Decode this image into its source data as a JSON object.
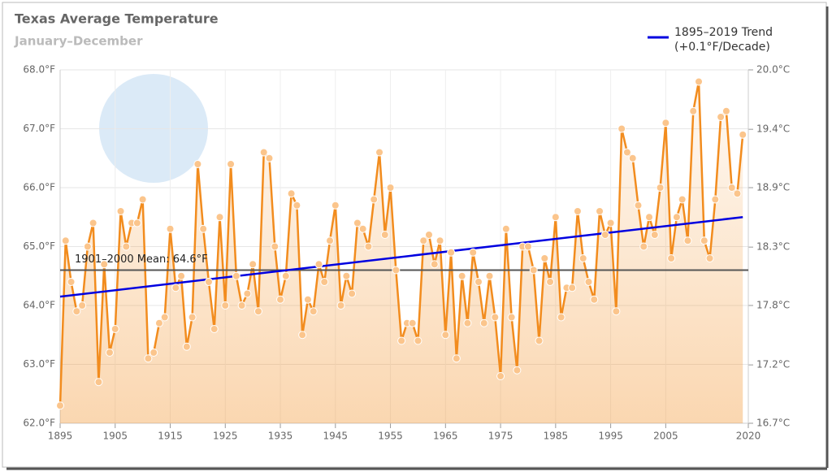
{
  "chart_data": {
    "type": "line",
    "title": "Texas Average Temperature",
    "subtitle": "January–December",
    "x": [
      1895,
      1896,
      1897,
      1898,
      1899,
      1900,
      1901,
      1902,
      1903,
      1904,
      1905,
      1906,
      1907,
      1908,
      1909,
      1910,
      1911,
      1912,
      1913,
      1914,
      1915,
      1916,
      1917,
      1918,
      1919,
      1920,
      1921,
      1922,
      1923,
      1924,
      1925,
      1926,
      1927,
      1928,
      1929,
      1930,
      1931,
      1932,
      1933,
      1934,
      1935,
      1936,
      1937,
      1938,
      1939,
      1940,
      1941,
      1942,
      1943,
      1944,
      1945,
      1946,
      1947,
      1948,
      1949,
      1950,
      1951,
      1952,
      1953,
      1954,
      1955,
      1956,
      1957,
      1958,
      1959,
      1960,
      1961,
      1962,
      1963,
      1964,
      1965,
      1966,
      1967,
      1968,
      1969,
      1970,
      1971,
      1972,
      1973,
      1974,
      1975,
      1976,
      1977,
      1978,
      1979,
      1980,
      1981,
      1982,
      1983,
      1984,
      1985,
      1986,
      1987,
      1988,
      1989,
      1990,
      1991,
      1992,
      1993,
      1994,
      1995,
      1996,
      1997,
      1998,
      1999,
      2000,
      2001,
      2002,
      2003,
      2004,
      2005,
      2006,
      2007,
      2008,
      2009,
      2010,
      2011,
      2012,
      2013,
      2014,
      2015,
      2016,
      2017,
      2018,
      2019
    ],
    "series": [
      {
        "name": null,
        "color": "#f28c1e",
        "values": [
          62.3,
          65.1,
          64.4,
          63.9,
          64.0,
          65.0,
          65.4,
          62.7,
          64.7,
          63.2,
          63.6,
          65.6,
          65.0,
          65.4,
          65.4,
          65.8,
          63.1,
          63.2,
          63.7,
          63.8,
          65.3,
          64.3,
          64.5,
          63.3,
          63.8,
          66.4,
          65.3,
          64.4,
          63.6,
          65.5,
          64.0,
          66.4,
          64.5,
          64.0,
          64.2,
          64.7,
          63.9,
          66.6,
          66.5,
          65.0,
          64.1,
          64.5,
          65.9,
          65.7,
          63.5,
          64.1,
          63.9,
          64.7,
          64.4,
          65.1,
          65.7,
          64.0,
          64.5,
          64.2,
          65.4,
          65.3,
          65.0,
          65.8,
          66.6,
          65.2,
          66.0,
          64.6,
          63.4,
          63.7,
          63.7,
          63.4,
          65.1,
          65.2,
          64.7,
          65.1,
          63.5,
          64.9,
          63.1,
          64.5,
          63.7,
          64.9,
          64.4,
          63.7,
          64.5,
          63.8,
          62.8,
          65.3,
          63.8,
          62.9,
          65.0,
          65.0,
          64.6,
          63.4,
          64.8,
          64.4,
          65.5,
          63.8,
          64.3,
          64.3,
          65.6,
          64.8,
          64.4,
          64.1,
          65.6,
          65.2,
          65.4,
          63.9,
          67.0,
          66.6,
          66.5,
          65.7,
          65.0,
          65.5,
          65.2,
          66.0,
          67.1,
          64.8,
          65.5,
          65.8,
          65.1,
          67.3,
          67.8,
          65.1,
          64.8,
          65.8,
          67.2,
          67.3,
          66.0,
          65.9,
          66.9
        ]
      }
    ],
    "trend": {
      "name": "1895–2019 Trend",
      "label": "(+0.1°F/Decade)",
      "color": "#0000e0",
      "x": [
        1895,
        2019
      ],
      "values": [
        64.15,
        65.5
      ]
    },
    "mean": {
      "label": "1901–2000 Mean: 64.6°F",
      "value": 64.6,
      "color": "#555555"
    },
    "xlim": [
      1895,
      2020
    ],
    "xticks": [
      1895,
      1905,
      1915,
      1925,
      1935,
      1945,
      1955,
      1965,
      1975,
      1985,
      1995,
      2005,
      2020
    ],
    "ylim": [
      62,
      68
    ],
    "yticks": [
      {
        "value": 62,
        "label": "62.0°F"
      },
      {
        "value": 63,
        "label": "63.0°F"
      },
      {
        "value": 64,
        "label": "64.0°F"
      },
      {
        "value": 65,
        "label": "65.0°F"
      },
      {
        "value": 66,
        "label": "66.0°F"
      },
      {
        "value": 67,
        "label": "67.0°F"
      },
      {
        "value": 68,
        "label": "68.0°F"
      }
    ],
    "y2lim": [
      16.67,
      20.0
    ],
    "y2ticks": [
      {
        "value": 16.67,
        "label": "16.7°C"
      },
      {
        "value": 17.22,
        "label": "17.2°C"
      },
      {
        "value": 17.78,
        "label": "17.8°C"
      },
      {
        "value": 18.33,
        "label": "18.3°C"
      },
      {
        "value": 18.89,
        "label": "18.9°C"
      },
      {
        "value": 19.44,
        "label": "19.4°C"
      },
      {
        "value": 20.0,
        "label": "20.0°C"
      }
    ],
    "grid": true
  }
}
